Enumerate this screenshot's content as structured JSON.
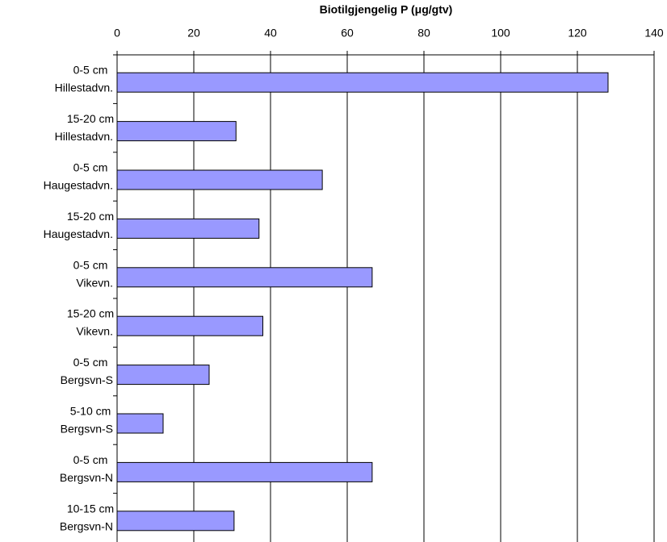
{
  "chart_data": {
    "type": "hbar",
    "title": "Biotilgjengelig P (μg/gtv)",
    "categories": [
      [
        "0-5 cm",
        "Hillestadvn."
      ],
      [
        "15-20 cm",
        "Hillestadvn."
      ],
      [
        "0-5 cm",
        "Haugestadvn."
      ],
      [
        "15-20 cm",
        "Haugestadvn."
      ],
      [
        "0-5 cm",
        "Vikevn."
      ],
      [
        "15-20 cm",
        "Vikevn."
      ],
      [
        "0-5 cm",
        "Bergsvn-S"
      ],
      [
        "5-10 cm",
        "Bergsvn-S"
      ],
      [
        "0-5 cm",
        "Bergsvn-N"
      ],
      [
        "10-15 cm",
        "Bergsvn-N"
      ]
    ],
    "values": [
      128,
      31,
      53.5,
      37,
      66.5,
      38,
      24,
      12,
      66.5,
      30.5
    ],
    "color": "#9999ff",
    "xlim": [
      0,
      140
    ],
    "xticks": [
      0,
      20,
      40,
      60,
      80,
      100,
      120,
      140
    ],
    "grid": true
  }
}
